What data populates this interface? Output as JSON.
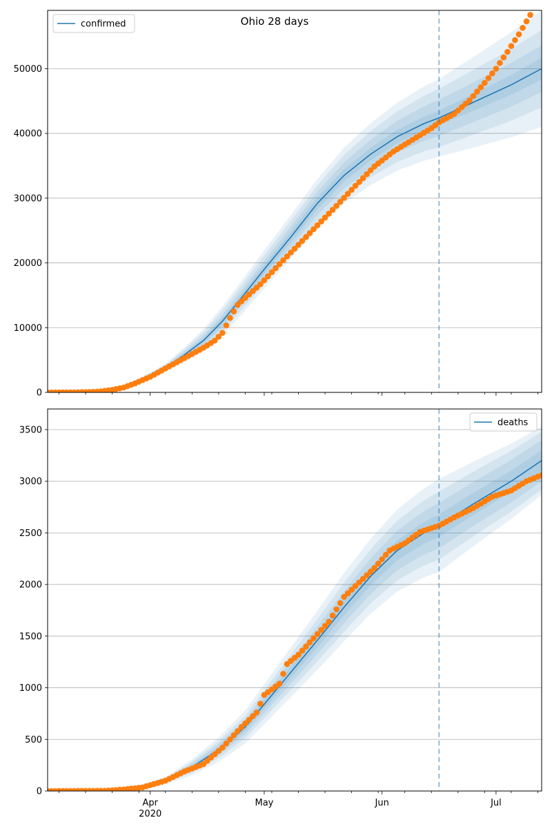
{
  "figure": {
    "title": "Ohio 28 days"
  },
  "colors": {
    "model": "#1f77b4",
    "observed": "#ff7f0e",
    "grid": "#b0b0b0",
    "band": "#1f77b4"
  },
  "x_axis": {
    "start": "2020-03-05",
    "end": "2020-07-13",
    "tick_labels": [
      {
        "date": "2020-04-01",
        "label": "Apr",
        "sublabel": "2020"
      },
      {
        "date": "2020-05-01",
        "label": "May",
        "sublabel": ""
      },
      {
        "date": "2020-06-01",
        "label": "Jun",
        "sublabel": ""
      },
      {
        "date": "2020-07-01",
        "label": "Jul",
        "sublabel": ""
      }
    ],
    "minor_tick_dates": [
      "2020-03-08",
      "2020-03-15",
      "2020-03-22",
      "2020-03-29",
      "2020-04-05",
      "2020-04-12",
      "2020-04-19",
      "2020-04-26",
      "2020-05-03",
      "2020-05-10",
      "2020-05-17",
      "2020-05-24",
      "2020-05-31",
      "2020-06-07",
      "2020-06-14",
      "2020-06-21",
      "2020-06-28",
      "2020-07-05",
      "2020-07-12"
    ],
    "forecast_date": "2020-06-16"
  },
  "chart_data": [
    {
      "type": "line",
      "legend": "confirmed",
      "legend_position": "top-left",
      "grid": "horizontal",
      "ylim": [
        0,
        59000
      ],
      "yticks": [
        0,
        10000,
        20000,
        30000,
        40000,
        50000
      ],
      "model_series": {
        "name": "confirmed",
        "points": [
          [
            "2020-03-05",
            0
          ],
          [
            "2020-03-15",
            20
          ],
          [
            "2020-03-20",
            200
          ],
          [
            "2020-03-25",
            700
          ],
          [
            "2020-03-30",
            2000
          ],
          [
            "2020-04-05",
            3800
          ],
          [
            "2020-04-10",
            5800
          ],
          [
            "2020-04-15",
            8000
          ],
          [
            "2020-04-20",
            11000
          ],
          [
            "2020-04-25",
            14600
          ],
          [
            "2020-05-01",
            19000
          ],
          [
            "2020-05-08",
            24000
          ],
          [
            "2020-05-15",
            29200
          ],
          [
            "2020-05-22",
            33500
          ],
          [
            "2020-05-29",
            36800
          ],
          [
            "2020-06-05",
            39500
          ],
          [
            "2020-06-12",
            41500
          ],
          [
            "2020-06-16",
            42400
          ],
          [
            "2020-06-25",
            44800
          ],
          [
            "2020-07-05",
            47500
          ],
          [
            "2020-07-13",
            50000
          ]
        ],
        "band_half_widths": [
          [
            [
              "2020-03-05",
              0
            ],
            [
              "2020-04-05",
              150
            ],
            [
              "2020-04-20",
              500
            ],
            [
              "2020-05-15",
              900
            ],
            [
              "2020-06-16",
              1100
            ],
            [
              "2020-07-13",
              1700
            ]
          ],
          [
            [
              "2020-03-05",
              0
            ],
            [
              "2020-04-05",
              300
            ],
            [
              "2020-04-20",
              1000
            ],
            [
              "2020-05-15",
              1800
            ],
            [
              "2020-06-16",
              2800
            ],
            [
              "2020-07-13",
              3600
            ]
          ],
          [
            [
              "2020-03-05",
              0
            ],
            [
              "2020-04-05",
              450
            ],
            [
              "2020-04-20",
              1700
            ],
            [
              "2020-05-15",
              2800
            ],
            [
              "2020-06-16",
              4500
            ],
            [
              "2020-07-13",
              6000
            ]
          ],
          [
            [
              "2020-03-05",
              0
            ],
            [
              "2020-04-05",
              600
            ],
            [
              "2020-04-20",
              2300
            ],
            [
              "2020-05-15",
              3800
            ],
            [
              "2020-06-16",
              6000
            ],
            [
              "2020-07-13",
              9000
            ]
          ]
        ]
      },
      "observed_points": [
        [
          "2020-03-05",
          0
        ],
        [
          "2020-03-12",
          15
        ],
        [
          "2020-03-16",
          60
        ],
        [
          "2020-03-19",
          150
        ],
        [
          "2020-03-22",
          400
        ],
        [
          "2020-03-25",
          750
        ],
        [
          "2020-03-28",
          1400
        ],
        [
          "2020-04-01",
          2400
        ],
        [
          "2020-04-05",
          3700
        ],
        [
          "2020-04-10",
          5300
        ],
        [
          "2020-04-15",
          6900
        ],
        [
          "2020-04-18",
          8000
        ],
        [
          "2020-04-20",
          9200
        ],
        [
          "2020-04-22",
          11500
        ],
        [
          "2020-04-24",
          13500
        ],
        [
          "2020-04-26",
          14600
        ],
        [
          "2020-04-30",
          16700
        ],
        [
          "2020-05-05",
          19800
        ],
        [
          "2020-05-10",
          22800
        ],
        [
          "2020-05-15",
          25800
        ],
        [
          "2020-05-20",
          28800
        ],
        [
          "2020-05-25",
          31900
        ],
        [
          "2020-05-30",
          34900
        ],
        [
          "2020-06-04",
          37200
        ],
        [
          "2020-06-09",
          39000
        ],
        [
          "2020-06-14",
          40800
        ],
        [
          "2020-06-16",
          41700
        ],
        [
          "2020-06-20",
          43000
        ],
        [
          "2020-06-24",
          45100
        ],
        [
          "2020-06-28",
          47800
        ],
        [
          "2020-07-01",
          50000
        ],
        [
          "2020-07-04",
          52600
        ],
        [
          "2020-07-07",
          55300
        ],
        [
          "2020-07-10",
          58300
        ]
      ]
    },
    {
      "type": "line",
      "legend": "deaths",
      "legend_position": "top-right",
      "grid": "horizontal",
      "ylim": [
        0,
        3700
      ],
      "yticks": [
        0,
        500,
        1000,
        1500,
        2000,
        2500,
        3000,
        3500
      ],
      "model_series": {
        "name": "deaths",
        "points": [
          [
            "2020-03-05",
            0
          ],
          [
            "2020-03-20",
            3
          ],
          [
            "2020-03-25",
            15
          ],
          [
            "2020-03-30",
            40
          ],
          [
            "2020-04-05",
            100
          ],
          [
            "2020-04-12",
            230
          ],
          [
            "2020-04-19",
            400
          ],
          [
            "2020-04-26",
            620
          ],
          [
            "2020-05-01",
            840
          ],
          [
            "2020-05-08",
            1150
          ],
          [
            "2020-05-15",
            1460
          ],
          [
            "2020-05-22",
            1780
          ],
          [
            "2020-05-29",
            2080
          ],
          [
            "2020-06-05",
            2330
          ],
          [
            "2020-06-12",
            2500
          ],
          [
            "2020-06-16",
            2570
          ],
          [
            "2020-06-25",
            2780
          ],
          [
            "2020-07-05",
            3000
          ],
          [
            "2020-07-13",
            3200
          ]
        ],
        "band_half_widths": [
          [
            [
              "2020-03-05",
              0
            ],
            [
              "2020-04-05",
              10
            ],
            [
              "2020-04-26",
              35
            ],
            [
              "2020-05-20",
              75
            ],
            [
              "2020-06-16",
              110
            ],
            [
              "2020-07-13",
              100
            ]
          ],
          [
            [
              "2020-03-05",
              0
            ],
            [
              "2020-04-05",
              18
            ],
            [
              "2020-04-26",
              70
            ],
            [
              "2020-05-20",
              150
            ],
            [
              "2020-06-16",
              220
            ],
            [
              "2020-07-13",
              200
            ]
          ],
          [
            [
              "2020-03-05",
              0
            ],
            [
              "2020-04-05",
              25
            ],
            [
              "2020-04-26",
              110
            ],
            [
              "2020-05-20",
              230
            ],
            [
              "2020-06-16",
              330
            ],
            [
              "2020-07-13",
              280
            ]
          ],
          [
            [
              "2020-03-05",
              0
            ],
            [
              "2020-04-05",
              35
            ],
            [
              "2020-04-26",
              160
            ],
            [
              "2020-05-20",
              320
            ],
            [
              "2020-06-16",
              450
            ],
            [
              "2020-07-13",
              330
            ]
          ]
        ]
      },
      "observed_points": [
        [
          "2020-03-05",
          0
        ],
        [
          "2020-03-20",
          2
        ],
        [
          "2020-03-25",
          15
        ],
        [
          "2020-03-30",
          35
        ],
        [
          "2020-04-05",
          100
        ],
        [
          "2020-04-10",
          190
        ],
        [
          "2020-04-15",
          260
        ],
        [
          "2020-04-20",
          420
        ],
        [
          "2020-04-25",
          620
        ],
        [
          "2020-04-29",
          760
        ],
        [
          "2020-05-01",
          930
        ],
        [
          "2020-05-05",
          1040
        ],
        [
          "2020-05-07",
          1230
        ],
        [
          "2020-05-10",
          1320
        ],
        [
          "2020-05-14",
          1480
        ],
        [
          "2020-05-18",
          1640
        ],
        [
          "2020-05-22",
          1880
        ],
        [
          "2020-05-26",
          2020
        ],
        [
          "2020-05-30",
          2160
        ],
        [
          "2020-06-03",
          2330
        ],
        [
          "2020-06-07",
          2400
        ],
        [
          "2020-06-11",
          2510
        ],
        [
          "2020-06-16",
          2570
        ],
        [
          "2020-06-20",
          2650
        ],
        [
          "2020-06-25",
          2740
        ],
        [
          "2020-06-30",
          2850
        ],
        [
          "2020-07-05",
          2910
        ],
        [
          "2020-07-09",
          3000
        ],
        [
          "2020-07-13",
          3060
        ]
      ]
    }
  ]
}
